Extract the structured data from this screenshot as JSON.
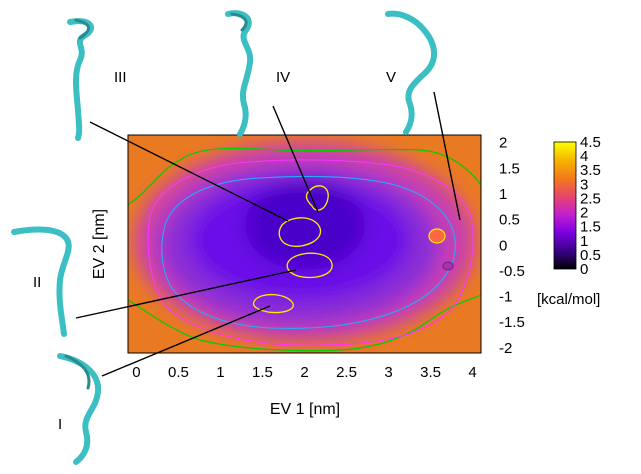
{
  "chart_data": {
    "type": "heatmap",
    "title": "",
    "xlabel": "EV 1 [nm]",
    "ylabel": "EV 2 [nm]",
    "xlim": [
      -0.1,
      4.1
    ],
    "ylim": [
      -2.1,
      2.15
    ],
    "x_ticks": [
      0,
      0.5,
      1,
      1.5,
      2,
      2.5,
      3,
      3.5,
      4
    ],
    "x_tick_labels": [
      "0",
      "0.5",
      "1",
      "1.5",
      "2",
      "2.5",
      "3",
      "3.5",
      "4"
    ],
    "y_ticks": [
      2,
      1.5,
      1,
      0.5,
      0,
      -0.5,
      -1,
      -1.5,
      -2
    ],
    "y_tick_labels": [
      "2",
      "1.5",
      "1",
      "0.5",
      "0",
      "-0.5",
      "-1",
      "-1.5",
      "-2"
    ],
    "colorbar": {
      "label": "[kcal/mol]",
      "range": [
        0,
        4.5
      ],
      "ticks": [
        4.5,
        4,
        3.5,
        3,
        2.5,
        2,
        1.5,
        1,
        0.5,
        0
      ],
      "tick_labels": [
        "4.5",
        "4",
        "3.5",
        "3",
        "2.5",
        "2",
        "1.5",
        "1",
        "0.5",
        "0"
      ],
      "colors": [
        "#000000",
        "#3a0088",
        "#7a00e0",
        "#c21fd0",
        "#e8456a",
        "#f47a1a",
        "#f5b500",
        "#ffff00"
      ]
    },
    "contour_levels": [
      {
        "value": 1.0,
        "color": "#00a0ff"
      },
      {
        "value": 2.0,
        "color": "#ff00ff"
      },
      {
        "value": 3.0,
        "color": "#00cc00"
      },
      {
        "value": 4.5,
        "color": "#ffff00"
      }
    ],
    "basins": [
      {
        "name": "IV",
        "x": 2.15,
        "y": 0.55
      },
      {
        "name": "III",
        "x": 2.0,
        "y": 0.2
      },
      {
        "name": "II",
        "x": 1.9,
        "y": -0.3
      },
      {
        "name": "I",
        "x": 1.65,
        "y": -0.8
      },
      {
        "name": "V",
        "x": 3.9,
        "y": 0.35
      }
    ],
    "structure_labels": [
      "I",
      "II",
      "III",
      "IV",
      "V"
    ]
  }
}
